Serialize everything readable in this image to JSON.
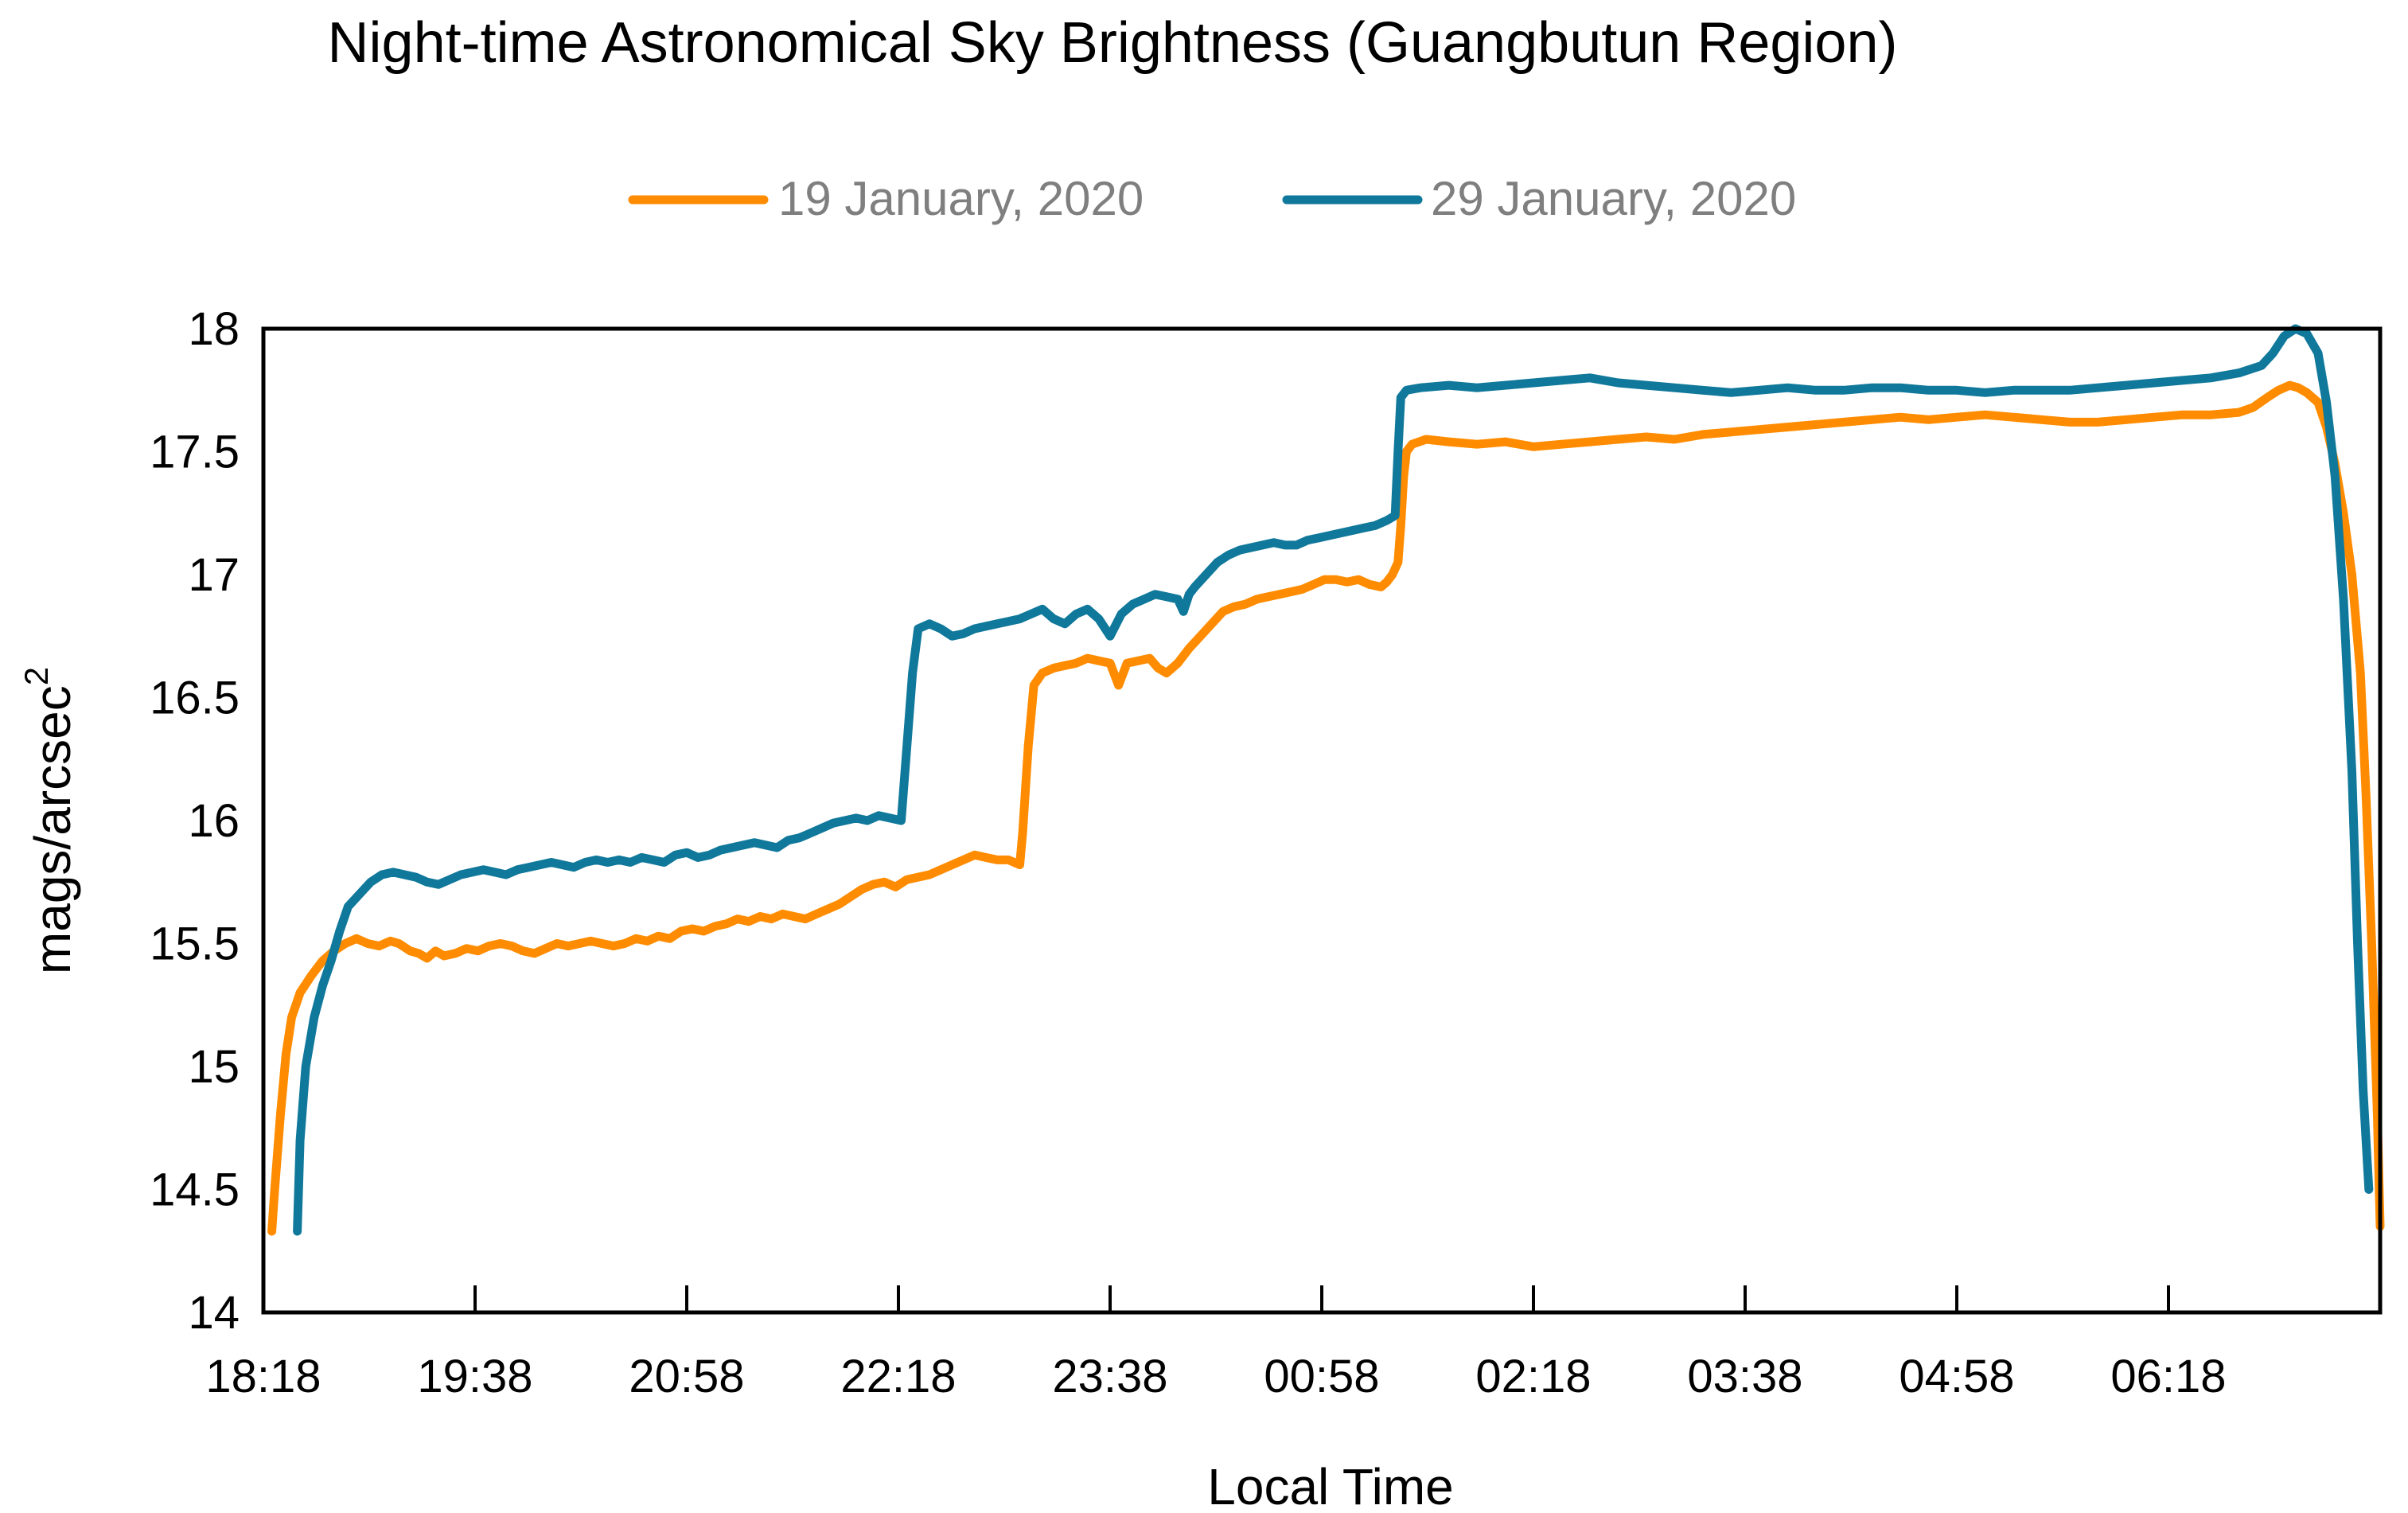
{
  "chart_data": {
    "type": "line",
    "title": "Night-time Astronomical Sky Brightness (Guangbutun Region)",
    "xlabel": "Local Time",
    "ylabel": "mags/arcsec",
    "ylabel_superscript": "2",
    "ylim": [
      14,
      18
    ],
    "y_ticks": [
      "14",
      "14.5",
      "15",
      "15.5",
      "16",
      "16.5",
      "17",
      "17.5",
      "18"
    ],
    "x_ticks": [
      "18:18",
      "19:38",
      "20:58",
      "22:18",
      "23:38",
      "00:58",
      "02:18",
      "03:38",
      "04:58",
      "06:18"
    ],
    "x_unit": "minutes after 18:18",
    "x_range": [
      0,
      750
    ],
    "grid": false,
    "legend_position": "top",
    "colors": {
      "19 January, 2020": "#ff8c00",
      "29 January, 2020": "#10789a"
    },
    "series": [
      {
        "name": "19 January, 2020",
        "color": "#ff8c00",
        "points": [
          [
            3,
            14.33
          ],
          [
            4,
            14.5
          ],
          [
            6,
            14.8
          ],
          [
            8,
            15.05
          ],
          [
            10,
            15.2
          ],
          [
            13,
            15.3
          ],
          [
            17,
            15.37
          ],
          [
            21,
            15.43
          ],
          [
            25,
            15.47
          ],
          [
            29,
            15.5
          ],
          [
            33,
            15.52
          ],
          [
            37,
            15.5
          ],
          [
            41,
            15.49
          ],
          [
            45,
            15.51
          ],
          [
            48,
            15.5
          ],
          [
            52,
            15.47
          ],
          [
            55,
            15.46
          ],
          [
            58,
            15.44
          ],
          [
            61,
            15.47
          ],
          [
            64,
            15.45
          ],
          [
            68,
            15.46
          ],
          [
            72,
            15.48
          ],
          [
            76,
            15.47
          ],
          [
            80,
            15.49
          ],
          [
            84,
            15.5
          ],
          [
            88,
            15.49
          ],
          [
            92,
            15.47
          ],
          [
            96,
            15.46
          ],
          [
            100,
            15.48
          ],
          [
            104,
            15.5
          ],
          [
            108,
            15.49
          ],
          [
            112,
            15.5
          ],
          [
            116,
            15.51
          ],
          [
            120,
            15.5
          ],
          [
            124,
            15.49
          ],
          [
            128,
            15.5
          ],
          [
            132,
            15.52
          ],
          [
            136,
            15.51
          ],
          [
            140,
            15.53
          ],
          [
            144,
            15.52
          ],
          [
            148,
            15.55
          ],
          [
            152,
            15.56
          ],
          [
            156,
            15.55
          ],
          [
            160,
            15.57
          ],
          [
            164,
            15.58
          ],
          [
            168,
            15.6
          ],
          [
            172,
            15.59
          ],
          [
            176,
            15.61
          ],
          [
            180,
            15.6
          ],
          [
            184,
            15.62
          ],
          [
            188,
            15.61
          ],
          [
            192,
            15.6
          ],
          [
            196,
            15.62
          ],
          [
            200,
            15.64
          ],
          [
            204,
            15.66
          ],
          [
            208,
            15.69
          ],
          [
            212,
            15.72
          ],
          [
            216,
            15.74
          ],
          [
            220,
            15.75
          ],
          [
            224,
            15.73
          ],
          [
            228,
            15.76
          ],
          [
            232,
            15.77
          ],
          [
            236,
            15.78
          ],
          [
            240,
            15.8
          ],
          [
            244,
            15.82
          ],
          [
            248,
            15.84
          ],
          [
            252,
            15.86
          ],
          [
            256,
            15.85
          ],
          [
            260,
            15.84
          ],
          [
            264,
            15.84
          ],
          [
            268,
            15.82
          ],
          [
            269,
            15.95
          ],
          [
            271,
            16.3
          ],
          [
            273,
            16.55
          ],
          [
            276,
            16.6
          ],
          [
            280,
            16.62
          ],
          [
            284,
            16.63
          ],
          [
            288,
            16.64
          ],
          [
            292,
            16.66
          ],
          [
            296,
            16.65
          ],
          [
            300,
            16.64
          ],
          [
            303,
            16.55
          ],
          [
            306,
            16.64
          ],
          [
            310,
            16.65
          ],
          [
            314,
            16.66
          ],
          [
            317,
            16.62
          ],
          [
            320,
            16.6
          ],
          [
            324,
            16.64
          ],
          [
            328,
            16.7
          ],
          [
            332,
            16.75
          ],
          [
            336,
            16.8
          ],
          [
            340,
            16.85
          ],
          [
            344,
            16.87
          ],
          [
            348,
            16.88
          ],
          [
            352,
            16.9
          ],
          [
            356,
            16.91
          ],
          [
            360,
            16.92
          ],
          [
            364,
            16.93
          ],
          [
            368,
            16.94
          ],
          [
            372,
            16.96
          ],
          [
            376,
            16.98
          ],
          [
            380,
            16.98
          ],
          [
            384,
            16.97
          ],
          [
            388,
            16.98
          ],
          [
            392,
            16.96
          ],
          [
            396,
            16.95
          ],
          [
            398,
            16.97
          ],
          [
            400,
            17.0
          ],
          [
            402,
            17.05
          ],
          [
            403,
            17.2
          ],
          [
            404,
            17.4
          ],
          [
            405,
            17.5
          ],
          [
            407,
            17.53
          ],
          [
            412,
            17.55
          ],
          [
            420,
            17.54
          ],
          [
            430,
            17.53
          ],
          [
            440,
            17.54
          ],
          [
            450,
            17.52
          ],
          [
            460,
            17.53
          ],
          [
            470,
            17.54
          ],
          [
            480,
            17.55
          ],
          [
            490,
            17.56
          ],
          [
            500,
            17.55
          ],
          [
            510,
            17.57
          ],
          [
            520,
            17.58
          ],
          [
            530,
            17.59
          ],
          [
            540,
            17.6
          ],
          [
            550,
            17.61
          ],
          [
            560,
            17.62
          ],
          [
            570,
            17.63
          ],
          [
            580,
            17.64
          ],
          [
            590,
            17.63
          ],
          [
            600,
            17.64
          ],
          [
            610,
            17.65
          ],
          [
            620,
            17.64
          ],
          [
            630,
            17.63
          ],
          [
            640,
            17.62
          ],
          [
            650,
            17.62
          ],
          [
            660,
            17.63
          ],
          [
            670,
            17.64
          ],
          [
            680,
            17.65
          ],
          [
            690,
            17.65
          ],
          [
            700,
            17.66
          ],
          [
            705,
            17.68
          ],
          [
            710,
            17.72
          ],
          [
            714,
            17.75
          ],
          [
            718,
            17.77
          ],
          [
            721,
            17.76
          ],
          [
            724,
            17.74
          ],
          [
            728,
            17.7
          ],
          [
            731,
            17.6
          ],
          [
            734,
            17.45
          ],
          [
            737,
            17.25
          ],
          [
            740,
            17.0
          ],
          [
            743,
            16.6
          ],
          [
            745,
            16.1
          ],
          [
            747,
            15.5
          ],
          [
            749,
            14.8
          ],
          [
            750,
            14.35
          ]
        ]
      },
      {
        "name": "29 January, 2020",
        "color": "#10789a",
        "points": [
          [
            12,
            14.33
          ],
          [
            13,
            14.7
          ],
          [
            15,
            15.0
          ],
          [
            18,
            15.2
          ],
          [
            21,
            15.33
          ],
          [
            24,
            15.43
          ],
          [
            27,
            15.55
          ],
          [
            30,
            15.65
          ],
          [
            34,
            15.7
          ],
          [
            38,
            15.75
          ],
          [
            42,
            15.78
          ],
          [
            46,
            15.79
          ],
          [
            50,
            15.78
          ],
          [
            54,
            15.77
          ],
          [
            58,
            15.75
          ],
          [
            62,
            15.74
          ],
          [
            66,
            15.76
          ],
          [
            70,
            15.78
          ],
          [
            74,
            15.79
          ],
          [
            78,
            15.8
          ],
          [
            82,
            15.79
          ],
          [
            86,
            15.78
          ],
          [
            90,
            15.8
          ],
          [
            94,
            15.81
          ],
          [
            98,
            15.82
          ],
          [
            102,
            15.83
          ],
          [
            106,
            15.82
          ],
          [
            110,
            15.81
          ],
          [
            114,
            15.83
          ],
          [
            118,
            15.84
          ],
          [
            122,
            15.83
          ],
          [
            126,
            15.84
          ],
          [
            130,
            15.83
          ],
          [
            134,
            15.85
          ],
          [
            138,
            15.84
          ],
          [
            142,
            15.83
          ],
          [
            146,
            15.86
          ],
          [
            150,
            15.87
          ],
          [
            154,
            15.85
          ],
          [
            158,
            15.86
          ],
          [
            162,
            15.88
          ],
          [
            166,
            15.89
          ],
          [
            170,
            15.9
          ],
          [
            174,
            15.91
          ],
          [
            178,
            15.9
          ],
          [
            182,
            15.89
          ],
          [
            186,
            15.92
          ],
          [
            190,
            15.93
          ],
          [
            194,
            15.95
          ],
          [
            198,
            15.97
          ],
          [
            202,
            15.99
          ],
          [
            206,
            16.0
          ],
          [
            210,
            16.01
          ],
          [
            214,
            16.0
          ],
          [
            218,
            16.02
          ],
          [
            222,
            16.01
          ],
          [
            226,
            16.0
          ],
          [
            228,
            16.3
          ],
          [
            230,
            16.6
          ],
          [
            232,
            16.78
          ],
          [
            236,
            16.8
          ],
          [
            240,
            16.78
          ],
          [
            244,
            16.75
          ],
          [
            248,
            16.76
          ],
          [
            252,
            16.78
          ],
          [
            256,
            16.79
          ],
          [
            260,
            16.8
          ],
          [
            264,
            16.81
          ],
          [
            268,
            16.82
          ],
          [
            272,
            16.84
          ],
          [
            276,
            16.86
          ],
          [
            280,
            16.82
          ],
          [
            284,
            16.8
          ],
          [
            288,
            16.84
          ],
          [
            292,
            16.86
          ],
          [
            296,
            16.82
          ],
          [
            300,
            16.75
          ],
          [
            304,
            16.84
          ],
          [
            308,
            16.88
          ],
          [
            312,
            16.9
          ],
          [
            316,
            16.92
          ],
          [
            320,
            16.91
          ],
          [
            324,
            16.9
          ],
          [
            326,
            16.85
          ],
          [
            328,
            16.92
          ],
          [
            330,
            16.95
          ],
          [
            334,
            17.0
          ],
          [
            338,
            17.05
          ],
          [
            342,
            17.08
          ],
          [
            346,
            17.1
          ],
          [
            350,
            17.11
          ],
          [
            354,
            17.12
          ],
          [
            358,
            17.13
          ],
          [
            362,
            17.12
          ],
          [
            366,
            17.12
          ],
          [
            370,
            17.14
          ],
          [
            374,
            17.15
          ],
          [
            378,
            17.16
          ],
          [
            382,
            17.17
          ],
          [
            386,
            17.18
          ],
          [
            390,
            17.19
          ],
          [
            394,
            17.2
          ],
          [
            398,
            17.22
          ],
          [
            401,
            17.24
          ],
          [
            402,
            17.5
          ],
          [
            403,
            17.72
          ],
          [
            405,
            17.75
          ],
          [
            410,
            17.76
          ],
          [
            420,
            17.77
          ],
          [
            430,
            17.76
          ],
          [
            440,
            17.77
          ],
          [
            450,
            17.78
          ],
          [
            460,
            17.79
          ],
          [
            470,
            17.8
          ],
          [
            480,
            17.78
          ],
          [
            490,
            17.77
          ],
          [
            500,
            17.76
          ],
          [
            510,
            17.75
          ],
          [
            520,
            17.74
          ],
          [
            530,
            17.75
          ],
          [
            540,
            17.76
          ],
          [
            550,
            17.75
          ],
          [
            560,
            17.75
          ],
          [
            570,
            17.76
          ],
          [
            580,
            17.76
          ],
          [
            590,
            17.75
          ],
          [
            600,
            17.75
          ],
          [
            610,
            17.74
          ],
          [
            620,
            17.75
          ],
          [
            630,
            17.75
          ],
          [
            640,
            17.75
          ],
          [
            650,
            17.76
          ],
          [
            660,
            17.77
          ],
          [
            670,
            17.78
          ],
          [
            680,
            17.79
          ],
          [
            690,
            17.8
          ],
          [
            700,
            17.82
          ],
          [
            708,
            17.85
          ],
          [
            712,
            17.9
          ],
          [
            716,
            17.97
          ],
          [
            720,
            18.0
          ],
          [
            724,
            17.98
          ],
          [
            728,
            17.9
          ],
          [
            731,
            17.7
          ],
          [
            734,
            17.4
          ],
          [
            737,
            16.9
          ],
          [
            740,
            16.2
          ],
          [
            742,
            15.5
          ],
          [
            744,
            14.9
          ],
          [
            746,
            14.5
          ]
        ]
      }
    ]
  }
}
